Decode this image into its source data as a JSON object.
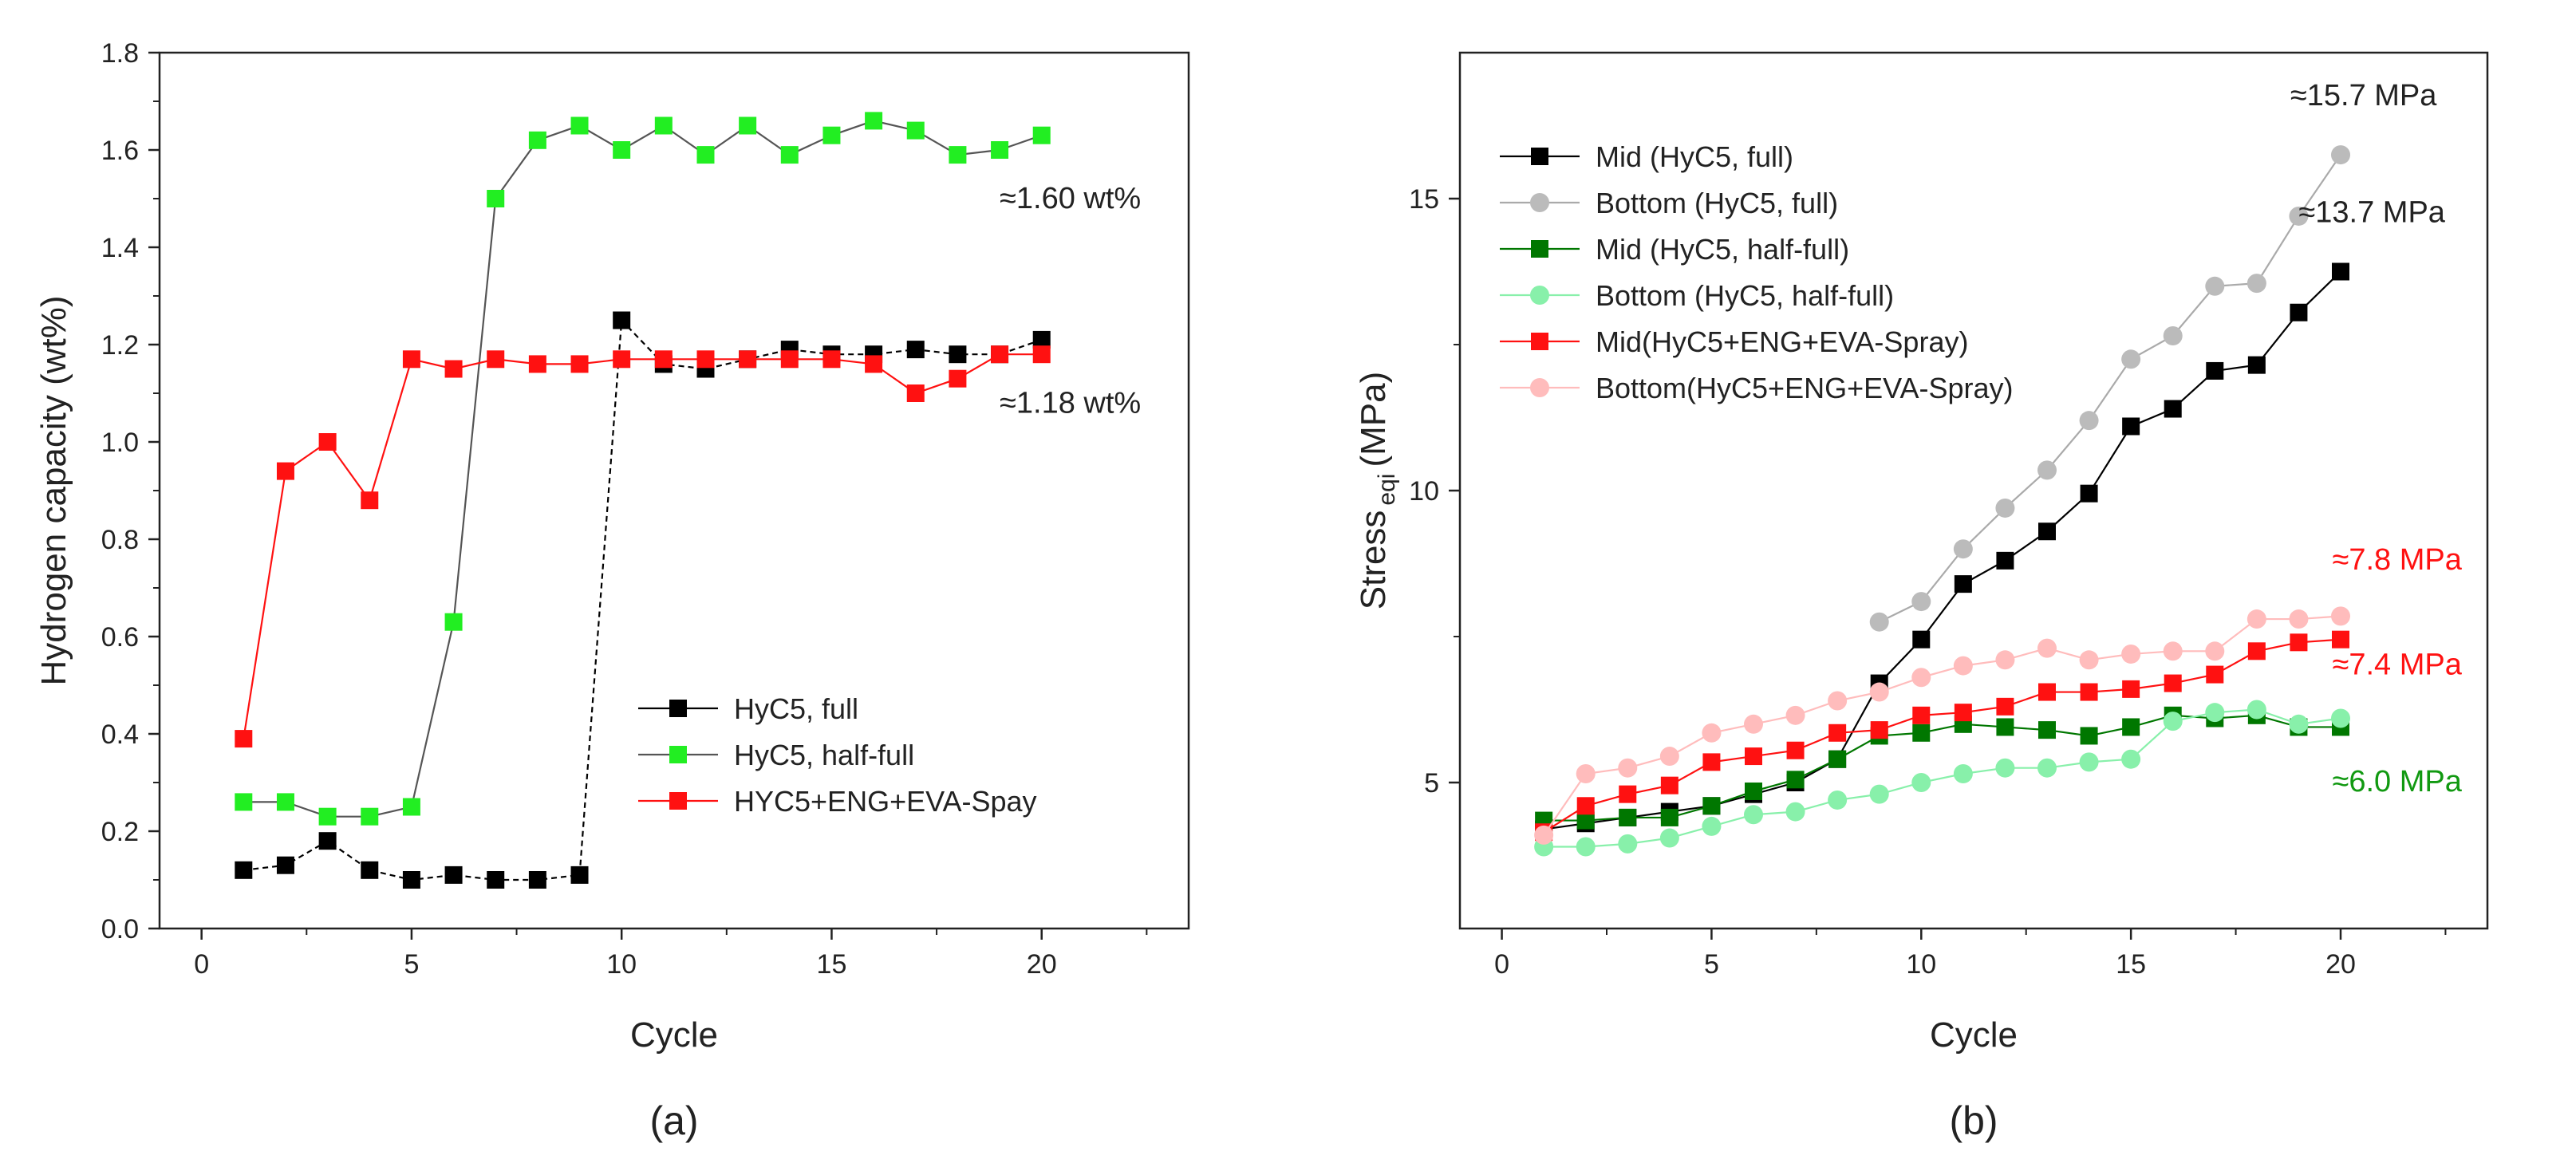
{
  "chart_data": [
    {
      "panel_label": "(a)",
      "type": "line",
      "xlabel": "Cycle",
      "ylabel": "Hydrogen capacity (wt%)",
      "xlim": [
        -1,
        23.5
      ],
      "ylim": [
        0,
        1.8
      ],
      "xticks": [
        0,
        5,
        10,
        15,
        20
      ],
      "yticks": [
        0.0,
        0.2,
        0.4,
        0.6,
        0.8,
        1.0,
        1.2,
        1.4,
        1.6,
        1.8
      ],
      "ytick_labels": [
        "0.0",
        "0.2",
        "0.4",
        "0.6",
        "0.8",
        "1.0",
        "1.2",
        "1.4",
        "1.6",
        "1.8"
      ],
      "grid": false,
      "legend_position": "bottom-right",
      "series": [
        {
          "name": "HyC5, full",
          "color": "#000000",
          "line_color": "#000000",
          "marker": "square",
          "dashed": true,
          "x": [
            1,
            2,
            3,
            4,
            5,
            6,
            7,
            8,
            9,
            10,
            11,
            12,
            13,
            14,
            15,
            16,
            17,
            18,
            19,
            20
          ],
          "y": [
            0.12,
            0.13,
            0.18,
            0.12,
            0.1,
            0.11,
            0.1,
            0.1,
            0.11,
            1.25,
            1.16,
            1.15,
            1.17,
            1.19,
            1.18,
            1.18,
            1.19,
            1.18,
            1.18,
            1.21
          ]
        },
        {
          "name": "HyC5, half-full",
          "color": "#22ee22",
          "line_color": "#555555",
          "marker": "square",
          "dashed": false,
          "x": [
            1,
            2,
            3,
            4,
            5,
            6,
            7,
            8,
            9,
            10,
            11,
            12,
            13,
            14,
            15,
            16,
            17,
            18,
            19,
            20
          ],
          "y": [
            0.26,
            0.26,
            0.23,
            0.23,
            0.25,
            0.63,
            1.5,
            1.62,
            1.65,
            1.6,
            1.65,
            1.59,
            1.65,
            1.59,
            1.63,
            1.66,
            1.64,
            1.59,
            1.6,
            1.63
          ]
        },
        {
          "name": "HYC5+ENG+EVA-Spay",
          "color": "#ff1111",
          "line_color": "#ff1111",
          "marker": "square",
          "dashed": false,
          "x": [
            1,
            2,
            3,
            4,
            5,
            6,
            7,
            8,
            9,
            10,
            11,
            12,
            13,
            14,
            15,
            16,
            17,
            18,
            19,
            20
          ],
          "y": [
            0.39,
            0.94,
            1.0,
            0.88,
            1.17,
            1.15,
            1.17,
            1.16,
            1.16,
            1.17,
            1.17,
            1.17,
            1.17,
            1.17,
            1.17,
            1.16,
            1.1,
            1.13,
            1.18,
            1.18
          ]
        }
      ],
      "annotations": [
        {
          "text": "≈1.60 wt%",
          "x": 19.0,
          "y": 1.48,
          "color": "#222222"
        },
        {
          "text": "≈1.18 wt%",
          "x": 19.0,
          "y": 1.06,
          "color": "#222222"
        }
      ]
    },
    {
      "panel_label": "(b)",
      "type": "line",
      "xlabel": "Cycle",
      "ylabel_main": "Stress",
      "ylabel_sub": "eqi",
      "ylabel_unit": "(MPa)",
      "xlim": [
        -1,
        23.5
      ],
      "ylim": [
        2.5,
        17.5
      ],
      "xticks": [
        0,
        5,
        10,
        15,
        20
      ],
      "yticks": [
        5,
        10,
        15
      ],
      "minor_yticks": [
        7.5,
        12.5
      ],
      "grid": false,
      "legend_position": "top-left",
      "series": [
        {
          "name": "Mid (HyC5, full)",
          "color": "#000000",
          "line_color": "#000000",
          "marker": "square",
          "x": [
            1,
            2,
            3,
            4,
            5,
            6,
            7,
            8,
            9,
            10,
            11,
            12,
            13,
            14,
            15,
            16,
            17,
            18,
            19,
            20
          ],
          "y": [
            4.2,
            4.3,
            4.4,
            4.5,
            4.6,
            4.8,
            5.0,
            5.4,
            6.7,
            7.45,
            8.4,
            8.8,
            9.3,
            9.95,
            11.1,
            11.4,
            12.05,
            12.15,
            13.05,
            13.75
          ]
        },
        {
          "name": "Bottom (HyC5, full)",
          "color": "#bbbbbb",
          "line_color": "#aaaaaa",
          "marker": "circle",
          "x": [
            9,
            10,
            11,
            12,
            13,
            14,
            15,
            16,
            17,
            18,
            19,
            20
          ],
          "y": [
            7.75,
            8.1,
            9.0,
            9.7,
            10.35,
            11.2,
            12.25,
            12.65,
            13.5,
            13.55,
            14.7,
            15.75
          ]
        },
        {
          "name": "Mid (HyC5, half-full)",
          "color": "#007700",
          "line_color": "#007700",
          "marker": "square",
          "x": [
            1,
            2,
            3,
            4,
            5,
            6,
            7,
            8,
            9,
            10,
            11,
            12,
            13,
            14,
            15,
            16,
            17,
            18,
            19,
            20
          ],
          "y": [
            4.35,
            4.35,
            4.4,
            4.4,
            4.6,
            4.85,
            5.05,
            5.4,
            5.8,
            5.85,
            6.0,
            5.95,
            5.9,
            5.8,
            5.95,
            6.15,
            6.1,
            6.15,
            5.95,
            5.95
          ]
        },
        {
          "name": "Bottom (HyC5, half-full)",
          "color": "#88f0aa",
          "line_color": "#88f0aa",
          "marker": "circle",
          "x": [
            1,
            2,
            3,
            4,
            5,
            6,
            7,
            8,
            9,
            10,
            11,
            12,
            13,
            14,
            15,
            16,
            17,
            18,
            19,
            20
          ],
          "y": [
            3.9,
            3.9,
            3.95,
            4.05,
            4.25,
            4.45,
            4.5,
            4.7,
            4.8,
            5.0,
            5.15,
            5.25,
            5.25,
            5.35,
            5.4,
            6.05,
            6.2,
            6.25,
            6.0,
            6.1
          ]
        },
        {
          "name": "Mid(HyC5+ENG+EVA-Spray)",
          "color": "#ff1111",
          "line_color": "#ff1111",
          "marker": "square",
          "x": [
            1,
            2,
            3,
            4,
            5,
            6,
            7,
            8,
            9,
            10,
            11,
            12,
            13,
            14,
            15,
            16,
            17,
            18,
            19,
            20
          ],
          "y": [
            4.15,
            4.6,
            4.8,
            4.95,
            5.35,
            5.45,
            5.55,
            5.85,
            5.9,
            6.15,
            6.2,
            6.3,
            6.55,
            6.55,
            6.6,
            6.7,
            6.85,
            7.25,
            7.4,
            7.45
          ]
        },
        {
          "name": "Bottom(HyC5+ENG+EVA-Spray)",
          "color": "#ffbcbc",
          "line_color": "#ffbcbc",
          "marker": "circle",
          "x": [
            1,
            2,
            3,
            4,
            5,
            6,
            7,
            8,
            9,
            10,
            11,
            12,
            13,
            14,
            15,
            16,
            17,
            18,
            19,
            20
          ],
          "y": [
            4.1,
            5.15,
            5.25,
            5.45,
            5.85,
            6.0,
            6.15,
            6.4,
            6.55,
            6.8,
            7.0,
            7.1,
            7.3,
            7.1,
            7.2,
            7.25,
            7.25,
            7.8,
            7.8,
            7.85
          ]
        }
      ],
      "annotations": [
        {
          "text": "≈15.7 MPa",
          "x": 18.8,
          "y": 16.6,
          "color": "#222222"
        },
        {
          "text": "≈13.7 MPa",
          "x": 19.0,
          "y": 14.6,
          "color": "#222222"
        },
        {
          "text": "≈7.8 MPa",
          "x": 19.8,
          "y": 8.65,
          "color": "#ff1111"
        },
        {
          "text": "≈7.4 MPa",
          "x": 19.8,
          "y": 6.85,
          "color": "#ff1111"
        },
        {
          "text": "≈6.0 MPa",
          "x": 19.8,
          "y": 4.85,
          "color": "#119911"
        }
      ]
    }
  ]
}
